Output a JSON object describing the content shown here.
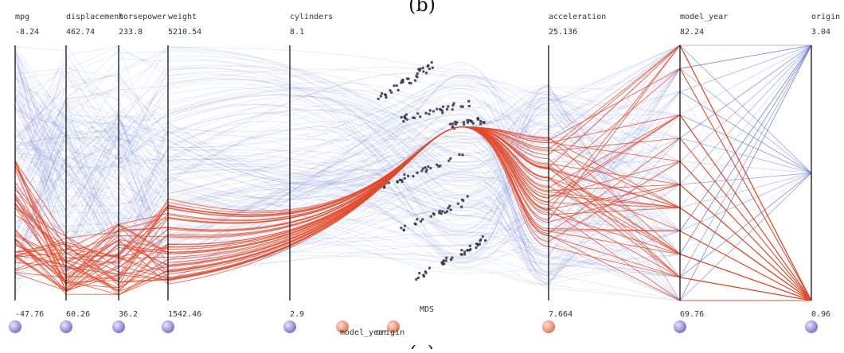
{
  "captions": {
    "top": "(b)",
    "bottom": "(c)"
  },
  "colors": {
    "axis": "#111111",
    "context": "#5b6fd0",
    "highlight": "#e2492a",
    "mds_dot": "#333344"
  },
  "chart_data": {
    "type": "parallel-coordinates",
    "axes": [
      {
        "name": "mpg",
        "max": "-8.24",
        "min": "-47.76"
      },
      {
        "name": "displacement",
        "max": "462.74",
        "min": "60.26"
      },
      {
        "name": "horsepower",
        "max": "233.8",
        "min": "36.2"
      },
      {
        "name": "weight",
        "max": "5210.54",
        "min": "1542.46"
      },
      {
        "name": "cylinders",
        "max": "8.1",
        "min": "2.9"
      },
      {
        "name": "acceleration",
        "max": "25.136",
        "min": "7.664"
      },
      {
        "name": "model_year",
        "max": "82.24",
        "min": "69.76"
      },
      {
        "name": "origin",
        "max": "3.04",
        "min": "0.96"
      }
    ],
    "embedded_view": {
      "label": "MDS"
    },
    "handle_labels": [
      "model_year",
      "origin"
    ],
    "series": [
      {
        "color": "#e2492a",
        "highlighted": true
      },
      {
        "color": "#5b6fd0",
        "highlighted": false
      }
    ]
  }
}
